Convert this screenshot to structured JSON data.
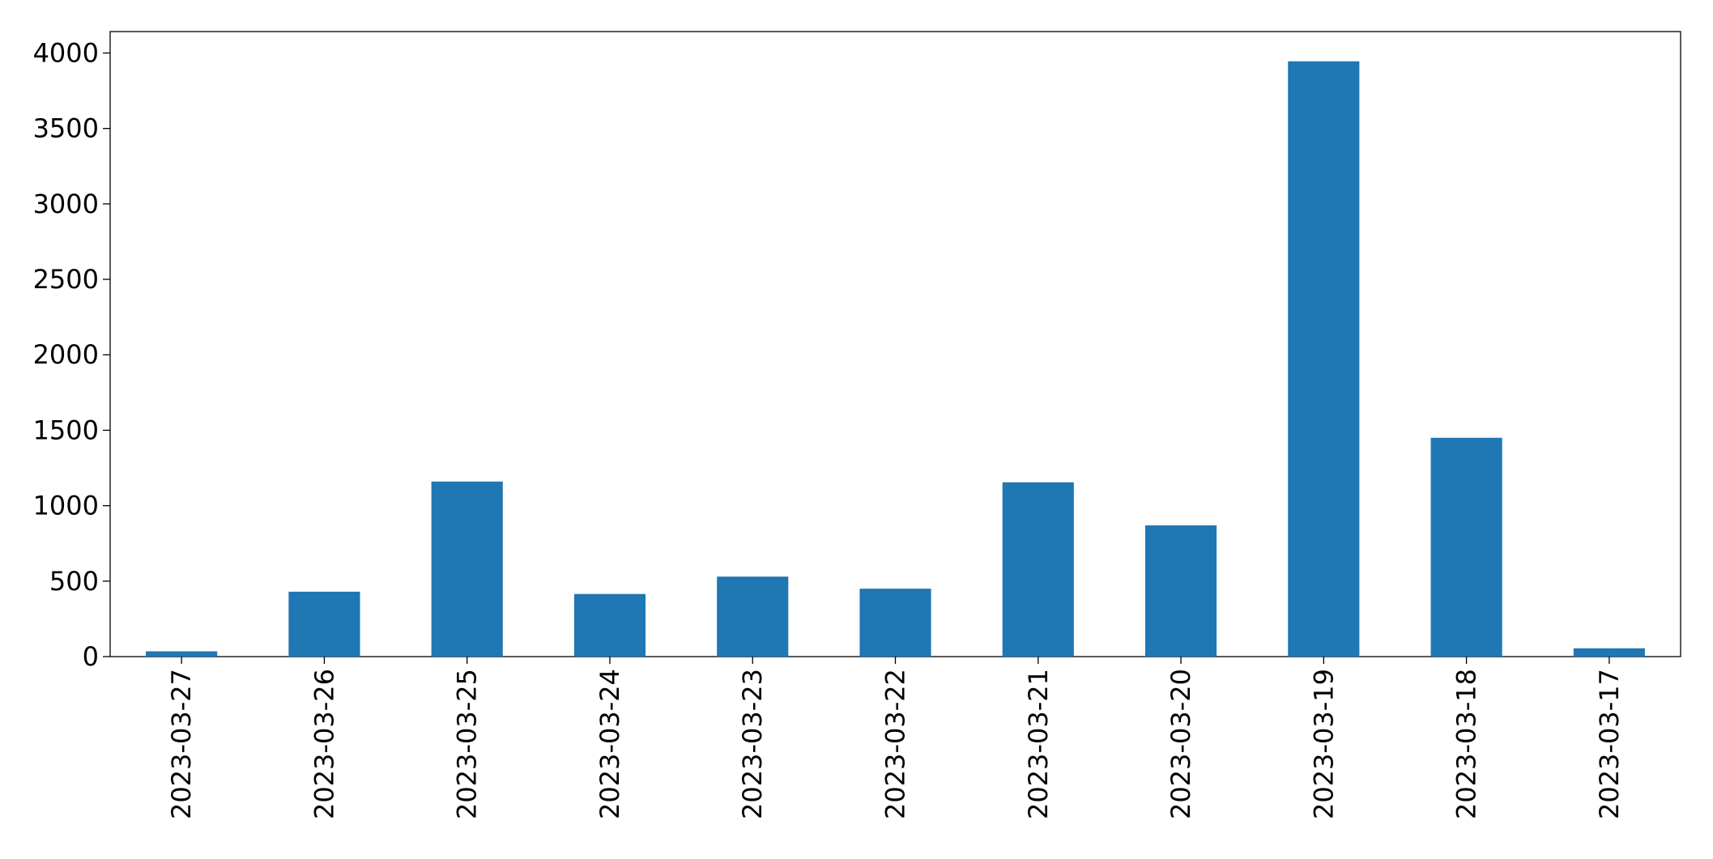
{
  "chart_data": {
    "type": "bar",
    "categories": [
      "2023-03-27",
      "2023-03-26",
      "2023-03-25",
      "2023-03-24",
      "2023-03-23",
      "2023-03-22",
      "2023-03-21",
      "2023-03-20",
      "2023-03-19",
      "2023-03-18",
      "2023-03-17"
    ],
    "values": [
      35,
      430,
      1160,
      415,
      530,
      450,
      1155,
      870,
      3945,
      1450,
      55
    ],
    "color": "#1f77b4",
    "ylim": [
      0,
      4142
    ],
    "yticks": [
      0,
      500,
      1000,
      1500,
      2000,
      2500,
      3000,
      3500,
      4000
    ],
    "grid": false
  }
}
